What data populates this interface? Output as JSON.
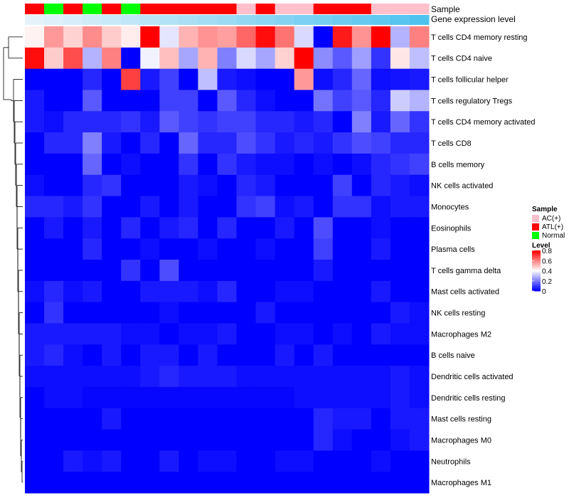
{
  "chart_data": {
    "type": "heatmap",
    "title": "",
    "annotation_tracks": [
      {
        "name": "Sample"
      },
      {
        "name": "Gene expression level"
      }
    ],
    "sample_groups": [
      "ATL(+)",
      "Normal",
      "ATL(+)",
      "Normal",
      "ATL(+)",
      "Normal",
      "ATL(+)",
      "ATL(+)",
      "ATL(+)",
      "ATL(+)",
      "ATL(+)",
      "AC(+)",
      "ATL(+)",
      "AC(+)",
      "AC(+)",
      "ATL(+)",
      "ATL(+)",
      "ATL(+)",
      "AC(+)",
      "AC(+)",
      "AC(+)"
    ],
    "expression_levels": [
      0.0,
      0.05,
      0.1,
      0.15,
      0.2,
      0.25,
      0.3,
      0.35,
      0.4,
      0.45,
      0.5,
      0.55,
      0.6,
      0.65,
      0.7,
      0.75,
      0.8,
      0.85,
      0.9,
      0.95,
      1.0
    ],
    "rows": [
      "T cells CD4 memory resting",
      "T cells CD4 naive",
      "T cells follicular helper",
      "T cells regulatory  Tregs",
      "T cells CD4 memory activated",
      "T cells CD8",
      "B cells memory",
      "NK cells activated",
      "Monocytes",
      "Eosinophils",
      "Plasma cells",
      "T cells gamma delta",
      "Mast cells activated",
      "NK cells resting",
      "Macrophages M2",
      "B cells naive",
      "Dendritic cells activated",
      "Dendritic cells resting",
      "Mast cells resting",
      "Macrophages M0",
      "Neutrophils",
      "Macrophages M1"
    ],
    "values": [
      [
        0.42,
        0.56,
        0.47,
        0.58,
        0.48,
        0.43,
        0.82,
        0.36,
        0.52,
        0.57,
        0.55,
        0.64,
        0.78,
        0.62,
        0.34,
        0.0,
        0.76,
        0.57,
        0.8,
        0.28,
        0.6
      ],
      [
        0.78,
        0.48,
        0.68,
        0.28,
        0.6,
        0.0,
        0.38,
        0.5,
        0.26,
        0.52,
        0.2,
        0.34,
        0.26,
        0.47,
        0.8,
        0.22,
        0.14,
        0.25,
        0.08,
        0.44,
        0.3
      ],
      [
        0.0,
        0.0,
        0.0,
        0.06,
        0.0,
        0.7,
        0.04,
        0.1,
        0.0,
        0.3,
        0.04,
        0.02,
        0.0,
        0.0,
        0.56,
        0.02,
        0.06,
        0.16,
        0.02,
        0.03,
        0.04
      ],
      [
        0.04,
        0.0,
        0.0,
        0.14,
        0.0,
        0.0,
        0.0,
        0.1,
        0.1,
        0.0,
        0.14,
        0.06,
        0.02,
        0.0,
        0.0,
        0.18,
        0.1,
        0.14,
        0.06,
        0.32,
        0.28
      ],
      [
        0.04,
        0.02,
        0.06,
        0.06,
        0.06,
        0.08,
        0.04,
        0.14,
        0.1,
        0.08,
        0.1,
        0.1,
        0.06,
        0.06,
        0.04,
        0.06,
        0.0,
        0.2,
        0.04,
        0.16,
        0.08
      ],
      [
        0.0,
        0.06,
        0.06,
        0.2,
        0.04,
        0.0,
        0.06,
        0.0,
        0.16,
        0.06,
        0.06,
        0.12,
        0.08,
        0.04,
        0.06,
        0.04,
        0.08,
        0.12,
        0.1,
        0.06,
        0.06
      ],
      [
        0.0,
        0.0,
        0.0,
        0.16,
        0.0,
        0.02,
        0.0,
        0.0,
        0.08,
        0.0,
        0.08,
        0.04,
        0.02,
        0.02,
        0.0,
        0.02,
        0.0,
        0.02,
        0.06,
        0.08,
        0.1
      ],
      [
        0.02,
        0.0,
        0.0,
        0.06,
        0.08,
        0.0,
        0.0,
        0.0,
        0.04,
        0.02,
        0.0,
        0.06,
        0.04,
        0.0,
        0.0,
        0.0,
        0.1,
        0.0,
        0.06,
        0.04,
        0.02
      ],
      [
        0.06,
        0.06,
        0.04,
        0.08,
        0.0,
        0.0,
        0.04,
        0.0,
        0.04,
        0.0,
        0.0,
        0.08,
        0.1,
        0.02,
        0.04,
        0.0,
        0.08,
        0.08,
        0.02,
        0.04,
        0.04
      ],
      [
        0.0,
        0.04,
        0.0,
        0.04,
        0.0,
        0.06,
        0.0,
        0.04,
        0.06,
        0.0,
        0.06,
        0.0,
        0.0,
        0.04,
        0.0,
        0.12,
        0.0,
        0.0,
        0.02,
        0.0,
        0.0
      ],
      [
        0.0,
        0.0,
        0.0,
        0.06,
        0.0,
        0.0,
        0.02,
        0.0,
        0.0,
        0.02,
        0.0,
        0.0,
        0.02,
        0.0,
        0.0,
        0.1,
        0.0,
        0.0,
        0.04,
        0.0,
        0.0
      ],
      [
        0.0,
        0.0,
        0.0,
        0.0,
        0.0,
        0.08,
        0.0,
        0.12,
        0.0,
        0.0,
        0.0,
        0.0,
        0.0,
        0.0,
        0.0,
        0.04,
        0.0,
        0.0,
        0.0,
        0.0,
        0.0
      ],
      [
        0.02,
        0.06,
        0.02,
        0.04,
        0.0,
        0.0,
        0.04,
        0.04,
        0.04,
        0.02,
        0.06,
        0.0,
        0.0,
        0.02,
        0.02,
        0.0,
        0.0,
        0.0,
        0.04,
        0.0,
        0.0
      ],
      [
        0.0,
        0.08,
        0.0,
        0.0,
        0.0,
        0.0,
        0.0,
        0.02,
        0.0,
        0.0,
        0.0,
        0.0,
        0.04,
        0.0,
        0.0,
        0.0,
        0.0,
        0.0,
        0.0,
        0.04,
        0.02
      ],
      [
        0.04,
        0.04,
        0.04,
        0.04,
        0.04,
        0.02,
        0.02,
        0.0,
        0.02,
        0.02,
        0.04,
        0.0,
        0.0,
        0.02,
        0.02,
        0.0,
        0.02,
        0.0,
        0.04,
        0.02,
        0.02
      ],
      [
        0.04,
        0.06,
        0.02,
        0.0,
        0.04,
        0.0,
        0.04,
        0.04,
        0.0,
        0.04,
        0.0,
        0.0,
        0.0,
        0.04,
        0.0,
        0.04,
        0.0,
        0.0,
        0.0,
        0.0,
        0.0
      ],
      [
        0.02,
        0.02,
        0.02,
        0.02,
        0.02,
        0.02,
        0.04,
        0.06,
        0.04,
        0.04,
        0.04,
        0.02,
        0.02,
        0.02,
        0.02,
        0.02,
        0.02,
        0.02,
        0.02,
        0.04,
        0.02
      ],
      [
        0.0,
        0.02,
        0.02,
        0.01,
        0.01,
        0.01,
        0.01,
        0.01,
        0.01,
        0.01,
        0.01,
        0.01,
        0.01,
        0.01,
        0.02,
        0.02,
        0.02,
        0.02,
        0.02,
        0.04,
        0.02
      ],
      [
        0.0,
        0.0,
        0.0,
        0.0,
        0.04,
        0.0,
        0.0,
        0.0,
        0.0,
        0.0,
        0.0,
        0.0,
        0.0,
        0.0,
        0.0,
        0.06,
        0.04,
        0.04,
        0.0,
        0.04,
        0.04
      ],
      [
        0.0,
        0.0,
        0.0,
        0.0,
        0.0,
        0.0,
        0.0,
        0.0,
        0.0,
        0.0,
        0.0,
        0.0,
        0.0,
        0.0,
        0.0,
        0.06,
        0.02,
        0.0,
        0.0,
        0.02,
        0.04
      ],
      [
        0.0,
        0.0,
        0.04,
        0.02,
        0.04,
        0.0,
        0.0,
        0.04,
        0.0,
        0.02,
        0.02,
        0.0,
        0.0,
        0.02,
        0.02,
        0.0,
        0.0,
        0.0,
        0.02,
        0.0,
        0.0
      ],
      [
        0.0,
        0.0,
        0.0,
        0.0,
        0.0,
        0.0,
        0.0,
        0.0,
        0.0,
        0.0,
        0.0,
        0.0,
        0.0,
        0.0,
        0.0,
        0.0,
        0.0,
        0.0,
        0.0,
        0.0,
        0.0
      ]
    ],
    "color_scale": {
      "low": "#0000ff",
      "mid": "#ffffff",
      "high": "#ff0000",
      "min": 0,
      "mid_value": 0.4,
      "max": 0.8
    },
    "legends": {
      "sample": {
        "title": "Sample",
        "items": [
          {
            "label": "AC(+)",
            "color": "#ffc0cb"
          },
          {
            "label": "ATL(+)",
            "color": "#ff0000"
          },
          {
            "label": "Normal",
            "color": "#00ff00"
          }
        ]
      },
      "level": {
        "title": "Level",
        "ticks": [
          "0.8",
          "0.6",
          "0.4",
          "0.2",
          "0"
        ],
        "tick_values": [
          0.8,
          0.6,
          0.4,
          0.2,
          0
        ]
      }
    },
    "dendrogram": "row clustering tree (left side)"
  }
}
